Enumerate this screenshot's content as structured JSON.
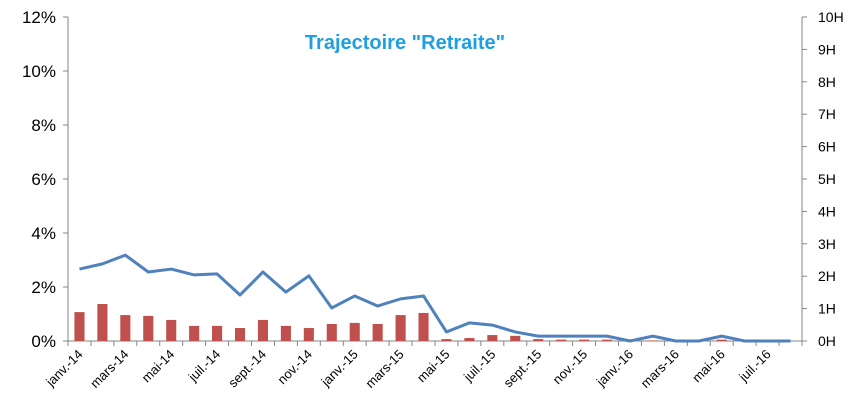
{
  "chart_data": {
    "type": "bar_line",
    "title": "Trajectoire  \"Retraite\"",
    "categories": [
      "janv.-14",
      null,
      "mars-14",
      null,
      "mai-14",
      null,
      "juil.-14",
      null,
      "sept.-14",
      null,
      "nov.-14",
      null,
      "janv.-15",
      null,
      "mars-15",
      null,
      "mai-15",
      null,
      "juil.-15",
      null,
      "sept.-15",
      null,
      "nov.-15",
      null,
      "janv.-16",
      null,
      "mars-16",
      null,
      "mai-16",
      null,
      "juil.-16",
      null
    ],
    "series": [
      {
        "type": "bar",
        "color": "#c0504d",
        "axis": "y",
        "values": [
          1.07,
          1.37,
          0.96,
          0.93,
          0.78,
          0.56,
          0.56,
          0.48,
          0.78,
          0.56,
          0.48,
          0.63,
          0.67,
          0.63,
          0.96,
          1.04,
          0.07,
          0.11,
          0.22,
          0.19,
          0.07,
          0.05,
          0.05,
          0.05,
          0.05,
          0.02,
          0,
          0,
          0.05,
          0,
          0,
          0
        ]
      },
      {
        "type": "line",
        "color": "#4f81bd",
        "axis": "y2",
        "values": [
          2.22,
          2.38,
          2.65,
          2.13,
          2.22,
          2.04,
          2.07,
          1.42,
          2.13,
          1.51,
          2.01,
          1.02,
          1.39,
          1.08,
          1.3,
          1.39,
          0.28,
          0.56,
          0.49,
          0.28,
          0.15,
          0.15,
          0.15,
          0.15,
          0,
          0.15,
          0,
          0,
          0.15,
          0,
          0,
          0
        ]
      }
    ],
    "ylim": [
      0,
      12
    ],
    "yticks": [
      {
        "value": 0,
        "label": "0%"
      },
      {
        "value": 2,
        "label": "2%"
      },
      {
        "value": 4,
        "label": "4%"
      },
      {
        "value": 6,
        "label": "6%"
      },
      {
        "value": 8,
        "label": "8%"
      },
      {
        "value": 10,
        "label": "10%"
      },
      {
        "value": 12,
        "label": "12%"
      }
    ],
    "y2lim": [
      0,
      10
    ],
    "y2ticks": [
      {
        "value": 0,
        "label": "0H"
      },
      {
        "value": 1,
        "label": "1H"
      },
      {
        "value": 2,
        "label": "2H"
      },
      {
        "value": 3,
        "label": "3H"
      },
      {
        "value": 4,
        "label": "4H"
      },
      {
        "value": 5,
        "label": "5H"
      },
      {
        "value": 6,
        "label": "6H"
      },
      {
        "value": 7,
        "label": "7H"
      },
      {
        "value": 8,
        "label": "8H"
      },
      {
        "value": 9,
        "label": "9H"
      },
      {
        "value": 10,
        "label": "10H"
      }
    ],
    "grid": false
  }
}
